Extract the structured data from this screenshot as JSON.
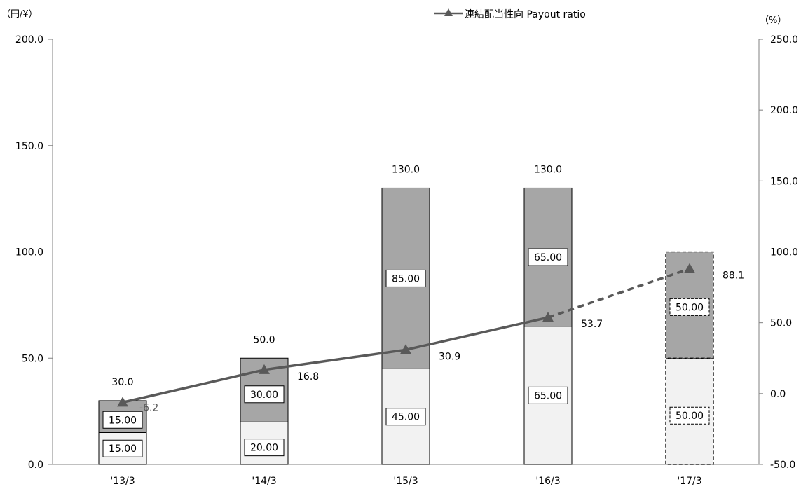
{
  "chart_data": {
    "type": "bar",
    "categories": [
      "'13/3",
      "'14/3",
      "'15/3",
      "'16/3",
      "'17/3"
    ],
    "series": [
      {
        "values": [
          15,
          20,
          45,
          65,
          50
        ],
        "labels": [
          "15.00",
          "20.00",
          "45.00",
          "65.00",
          "50.00"
        ]
      },
      {
        "values": [
          15,
          30,
          85,
          65,
          50
        ],
        "labels": [
          "15.00",
          "30.00",
          "85.00",
          "65.00",
          "50.00"
        ]
      },
      {
        "name": "連結配当性向 Payout ratio",
        "type": "line",
        "axis": "right",
        "values": [
          -6.2,
          16.8,
          30.9,
          53.7,
          88.1
        ],
        "labels": [
          "-6.2",
          "16.8",
          "30.9",
          "53.7",
          "88.1"
        ]
      }
    ],
    "totals": [
      "30.0",
      "50.0",
      "130.0",
      "130.0",
      ""
    ],
    "forecast_index": 4,
    "left_axis": {
      "unit": "（円/¥）",
      "ylim": [
        0,
        200
      ],
      "ticks": [
        "0.0",
        "50.0",
        "100.0",
        "150.0",
        "200.0"
      ]
    },
    "right_axis": {
      "unit": "（%）",
      "ylim": [
        -50,
        250
      ],
      "ticks": [
        "-50.0",
        "0.0",
        "50.0",
        "100.0",
        "150.0",
        "200.0",
        "250.0"
      ]
    },
    "legend": {
      "label": "連結配当性向 Payout ratio",
      "position": "top-center"
    },
    "colors": {
      "lower": "#f2f2f2",
      "upper": "#a6a6a6",
      "line": "#595959",
      "border": "#000000",
      "axis": "#808080"
    },
    "grid": false
  }
}
